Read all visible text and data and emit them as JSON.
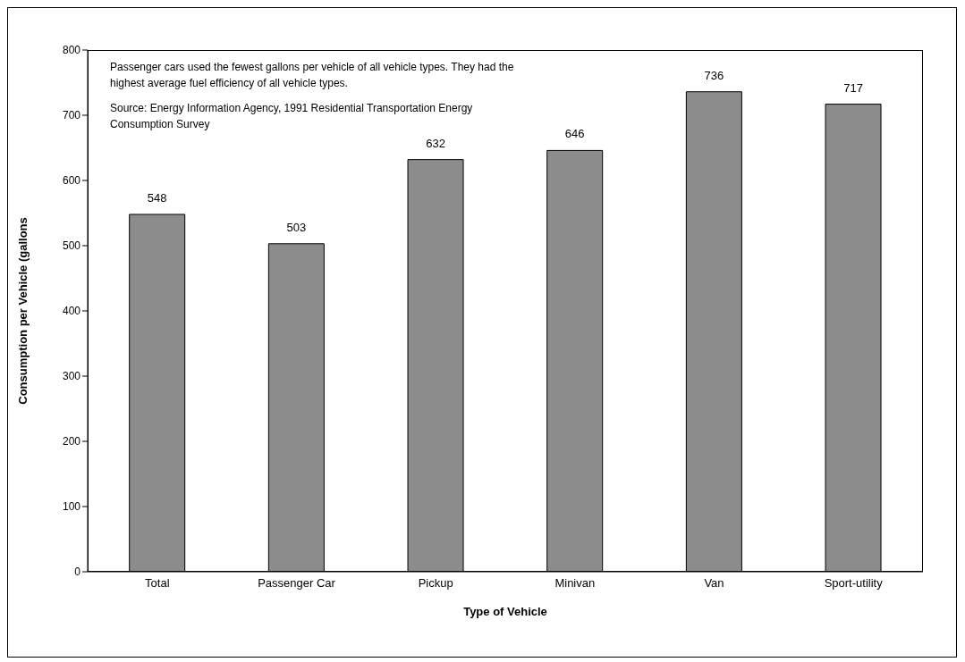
{
  "chart_data": {
    "type": "bar",
    "xlabel": "Type of Vehicle",
    "ylabel": "Consumption per Vehicle (gallons",
    "categories": [
      "Total",
      "Passenger Car",
      "Pickup",
      "Minivan",
      "Van",
      "Sport-utility"
    ],
    "values": [
      548,
      503,
      632,
      646,
      736,
      717
    ],
    "color": "#8c8c8c",
    "ylim": [
      0,
      800
    ],
    "yticks": [
      0,
      100,
      200,
      300,
      400,
      500,
      600,
      700,
      800
    ],
    "grid": false,
    "data_labels": true,
    "legend": false,
    "annotations": [
      "Passenger cars used the fewest gallons per vehicle of all vehicle types. They had the highest average fuel efficiency of all vehicle types.",
      "Source:  Energy Information Agency, 1991 Residential Transportation Energy Consumption Survey"
    ]
  }
}
